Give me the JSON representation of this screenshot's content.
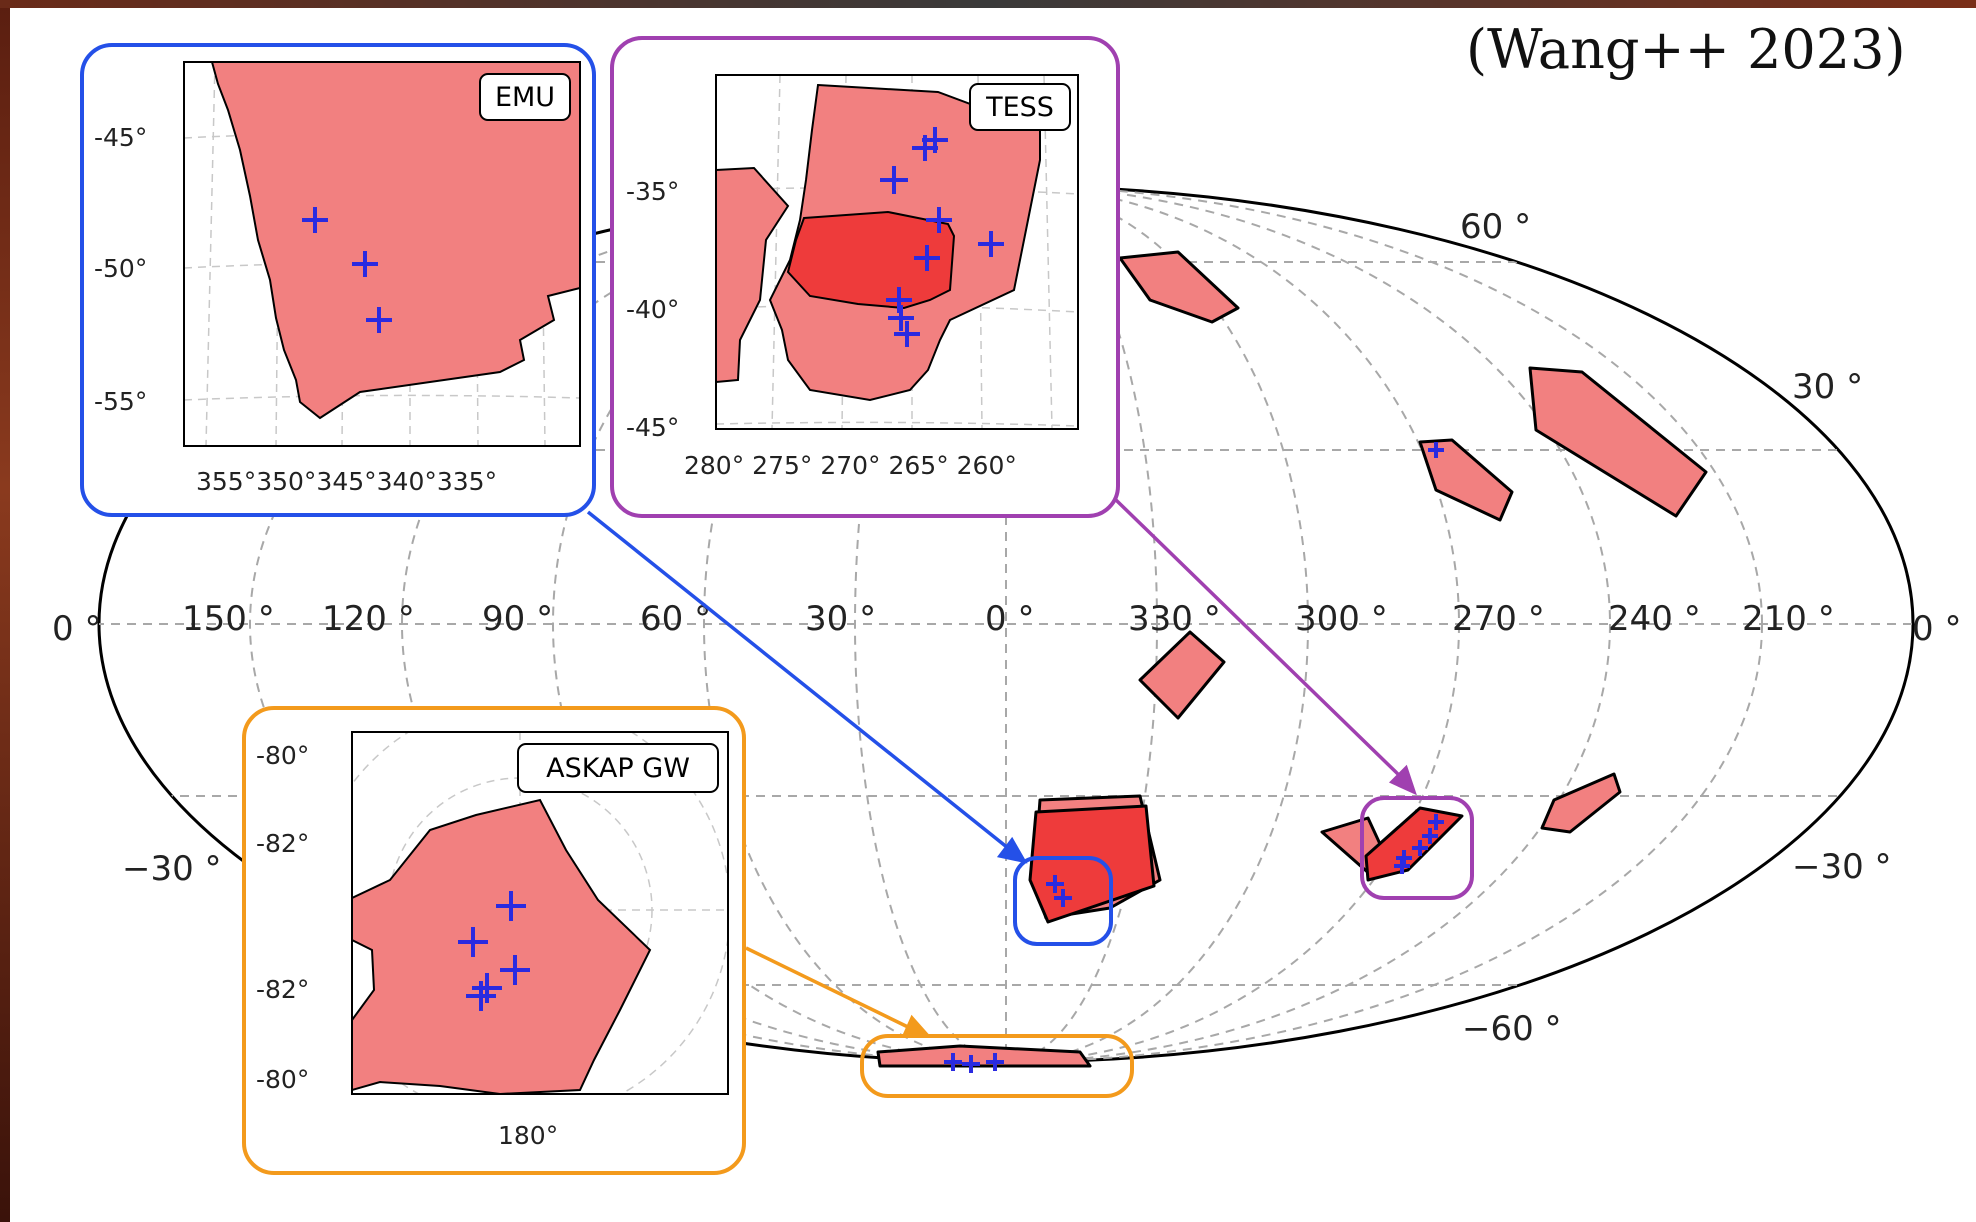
{
  "credit": "(Wang++ 2023)",
  "main_map": {
    "ra_labels": [
      "150 °",
      "120 °",
      "90 °",
      "60 °",
      "30 °",
      "0 °",
      "330 °",
      "300 °",
      "270 °",
      "240 °",
      "210 °"
    ],
    "edge_left": "0 °",
    "edge_right": "0 °",
    "dec_labels": {
      "d60": "60 °",
      "d30": "30 °",
      "dm30_left": "−30 °",
      "dm30_right": "−30 °",
      "dm60": "−60 °"
    }
  },
  "insets": {
    "emu": {
      "label": "EMU",
      "y_ticks": [
        "-45°",
        "-50°",
        "-55°"
      ],
      "x_ticks": "355°350°345°340°335°"
    },
    "tess": {
      "label": "TESS",
      "y_ticks": [
        "-35°",
        "-40°",
        "-45°"
      ],
      "x_ticks": "280° 275° 270° 265° 260°"
    },
    "askap": {
      "label": "ASKAP GW",
      "y_ticks": [
        "-80°",
        "-82°",
        "-82°",
        "-80°"
      ],
      "x_tick": "180°"
    }
  },
  "colors": {
    "field_fill": "#f28080",
    "field_dark": "#ee3b3b",
    "emu_frame": "#2450e8",
    "tess_frame": "#a040b0",
    "askap_frame": "#f39a1c",
    "marker": "#2a2ae0"
  }
}
